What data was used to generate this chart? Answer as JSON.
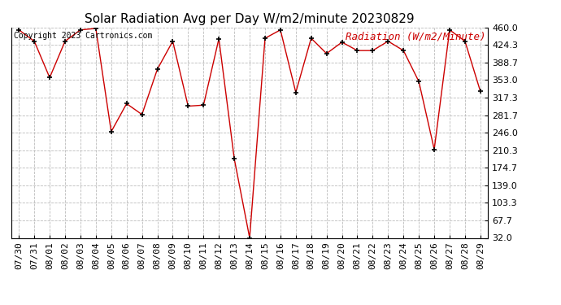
{
  "title": "Solar Radiation Avg per Day W/m2/minute 20230829",
  "copyright": "Copyright 2023 Cartronics.com",
  "legend_label": "Radiation (W/m2/Minute)",
  "dates": [
    "07/30",
    "07/31",
    "08/01",
    "08/02",
    "08/03",
    "08/04",
    "08/05",
    "08/06",
    "08/07",
    "08/08",
    "08/09",
    "08/10",
    "08/11",
    "08/12",
    "08/13",
    "08/14",
    "08/15",
    "08/16",
    "08/17",
    "08/18",
    "08/19",
    "08/20",
    "08/21",
    "08/22",
    "08/23",
    "08/24",
    "08/25",
    "08/26",
    "08/27",
    "08/28",
    "08/29"
  ],
  "values": [
    455,
    432,
    358,
    432,
    455,
    458,
    248,
    305,
    283,
    375,
    432,
    300,
    302,
    437,
    193,
    32,
    438,
    455,
    328,
    438,
    407,
    430,
    413,
    413,
    432,
    413,
    350,
    212,
    455,
    432,
    330
  ],
  "yticks": [
    32.0,
    67.7,
    103.3,
    139.0,
    174.7,
    210.3,
    246.0,
    281.7,
    317.3,
    353.0,
    388.7,
    424.3,
    460.0
  ],
  "ymin": 32.0,
  "ymax": 460.0,
  "line_color": "#cc0000",
  "marker_color": "#000000",
  "bg_color": "#ffffff",
  "grid_color": "#bbbbbb",
  "title_fontsize": 11,
  "copyright_fontsize": 7,
  "legend_fontsize": 9,
  "tick_fontsize": 8,
  "figwidth": 6.9,
  "figheight": 3.75,
  "dpi": 100
}
